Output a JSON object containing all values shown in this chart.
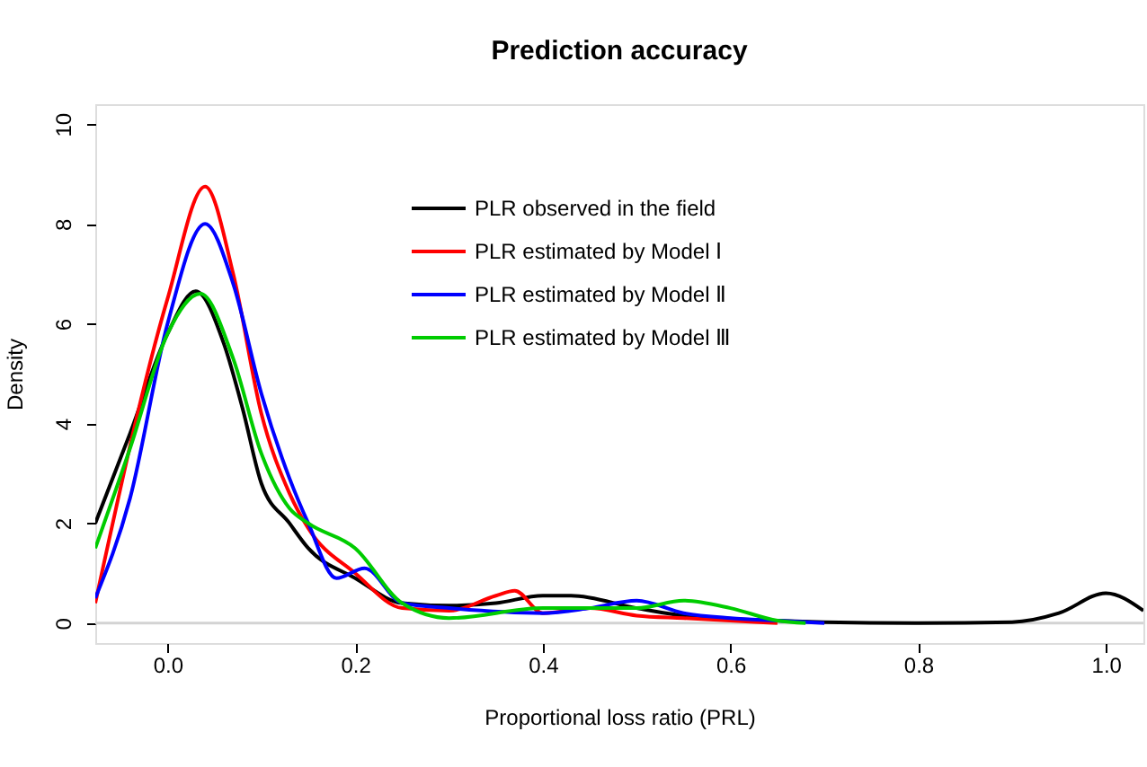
{
  "chart_data": {
    "type": "line",
    "title": "Prediction accuracy",
    "xlabel": "Proportional loss ratio (PRL)",
    "ylabel": "Density",
    "xlim": [
      -0.077,
      1.04
    ],
    "ylim": [
      -0.4,
      10.4
    ],
    "xticks": [
      {
        "value": 0,
        "label": "0.0"
      },
      0.2,
      0.4,
      0.6,
      0.8,
      {
        "value": 1,
        "label": "1.0"
      }
    ],
    "yticks": [
      0,
      2,
      4,
      6,
      8,
      10
    ],
    "grid": false,
    "legend": "top",
    "line_style": "solid",
    "marker": "none",
    "ref_lines": [
      {
        "axis": "y",
        "value": 0,
        "label": null,
        "color": "#d3d3d3"
      }
    ],
    "series": [
      {
        "name": "PLR observed in the field",
        "color": "#000000",
        "x": [
          -0.077,
          -0.04,
          0,
          0.03,
          0.06,
          0.08,
          0.1,
          0.13,
          0.15,
          0.2,
          0.25,
          0.3,
          0.35,
          0.4,
          0.43,
          0.5,
          0.55,
          0.7,
          0.8,
          0.9,
          0.95,
          1.0,
          1.04
        ],
        "values": [
          2.0,
          3.8,
          5.8,
          6.65,
          5.6,
          4.3,
          2.8,
          2.0,
          1.5,
          0.9,
          0.4,
          0.35,
          0.4,
          0.55,
          0.55,
          0.3,
          0.15,
          0.02,
          0,
          0.02,
          0.2,
          0.6,
          0.25
        ]
      },
      {
        "name": "PLR estimated by Model Ⅰ",
        "color": "#ff0000",
        "x": [
          -0.077,
          0,
          0.04,
          0.07,
          0.1,
          0.13,
          0.15,
          0.2,
          0.25,
          0.3,
          0.35,
          0.37,
          0.4,
          0.45,
          0.5,
          0.55,
          0.6,
          0.65
        ],
        "values": [
          0.4,
          6.5,
          8.75,
          7.0,
          4.2,
          2.6,
          1.9,
          1.0,
          0.3,
          0.25,
          0.55,
          0.65,
          0.2,
          0.3,
          0.15,
          0.1,
          0.05,
          0
        ]
      },
      {
        "name": "PLR estimated by Model Ⅱ",
        "color": "#0000ff",
        "x": [
          -0.077,
          -0.04,
          0,
          0.04,
          0.07,
          0.1,
          0.13,
          0.15,
          0.18,
          0.21,
          0.25,
          0.3,
          0.4,
          0.45,
          0.5,
          0.55,
          0.6,
          0.65,
          0.7
        ],
        "values": [
          0.5,
          2.5,
          6.0,
          8.0,
          6.8,
          4.6,
          2.9,
          2.0,
          0.9,
          1.1,
          0.4,
          0.3,
          0.2,
          0.3,
          0.45,
          0.2,
          0.1,
          0.05,
          0
        ]
      },
      {
        "name": "PLR estimated by Model Ⅲ",
        "color": "#00cc00",
        "x": [
          -0.077,
          -0.04,
          0,
          0.035,
          0.07,
          0.1,
          0.13,
          0.15,
          0.2,
          0.25,
          0.3,
          0.4,
          0.5,
          0.55,
          0.6,
          0.65,
          0.68
        ],
        "values": [
          1.5,
          3.5,
          5.8,
          6.6,
          5.3,
          3.4,
          2.3,
          2.0,
          1.5,
          0.4,
          0.1,
          0.3,
          0.3,
          0.45,
          0.3,
          0.05,
          0
        ]
      }
    ]
  }
}
